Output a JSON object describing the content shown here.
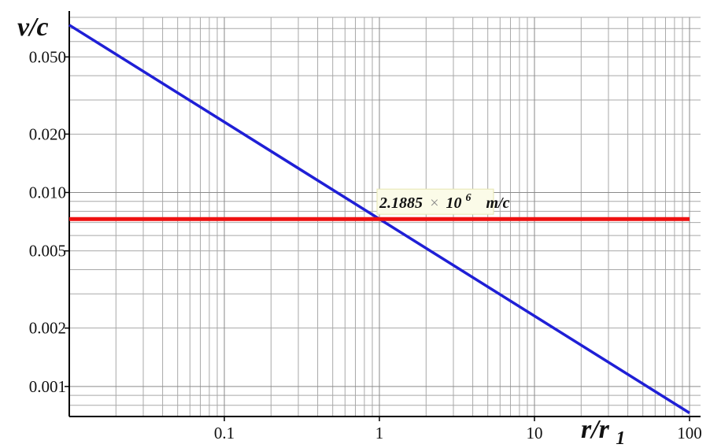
{
  "chart_data": {
    "type": "line",
    "xscale": "log",
    "yscale": "log",
    "xlim": [
      0.01,
      100
    ],
    "ylim": [
      0.0007,
      0.08
    ],
    "grid": true,
    "xlabel": {
      "main": "r/r",
      "sub": "1"
    },
    "ylabel": "v/c",
    "x_ticks": [
      "0.1",
      "1",
      "10",
      "100"
    ],
    "y_ticks": [
      "0.001",
      "0.002",
      "0.005",
      "0.010",
      "0.020",
      "0.050"
    ],
    "series": [
      {
        "color": "#1f1fd6",
        "x": [
          0.01,
          100
        ],
        "y": [
          0.073,
          0.00073
        ]
      },
      {
        "color": "#ee1111",
        "x": [
          0.01,
          100
        ],
        "y": [
          0.0073,
          0.0073
        ]
      }
    ],
    "annotation": {
      "mantissa": "2.1885",
      "times": "×",
      "base": "10",
      "exponent": "6",
      "unit": "m/c"
    }
  }
}
